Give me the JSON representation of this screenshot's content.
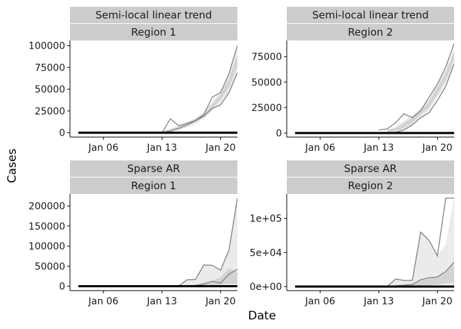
{
  "figure": {
    "xlabel": "Date",
    "ylabel": "Cases",
    "colors": {
      "strip_fill": "#cccccc",
      "band_outer": "#ebebeb",
      "band_inner": "#d3d3d3",
      "draw_line": "#7f7f7f",
      "observed_line": "#000000",
      "axis_line": "#000000"
    }
  },
  "chart_data": [
    {
      "type": "line",
      "facets": [
        "Semi-local linear trend",
        "Region 1"
      ],
      "x_ticks": [
        "Jan 06",
        "Jan 13",
        "Jan 20"
      ],
      "xlim": [
        1,
        21
      ],
      "ylim": [
        -5000,
        106000
      ],
      "y_ticks": [
        0,
        25000,
        50000,
        75000,
        100000
      ],
      "y_tick_labels": [
        "0",
        "25000",
        "50000",
        "75000",
        "100000"
      ],
      "x": [
        12,
        13,
        14,
        15,
        16,
        17,
        18,
        19,
        20,
        21
      ],
      "band_outer": {
        "lower": [
          0,
          1000,
          3000,
          6000,
          10000,
          16000,
          25000,
          33000,
          45000,
          68000
        ],
        "upper": [
          2000,
          5000,
          8000,
          12000,
          17000,
          24000,
          36000,
          48000,
          68000,
          98000
        ]
      },
      "band_inner": {
        "lower": [
          0,
          1500,
          4000,
          8000,
          12000,
          18000,
          28000,
          38000,
          52000,
          76000
        ],
        "upper": [
          1000,
          4000,
          7000,
          11000,
          16000,
          22000,
          33000,
          44000,
          62000,
          90000
        ]
      },
      "draws": [
        [
          0,
          16000,
          8000,
          11000,
          14000,
          21000,
          41000,
          46000,
          68000,
          100000
        ],
        [
          0,
          2000,
          5000,
          9000,
          14000,
          19000,
          28000,
          32000,
          46000,
          69000
        ]
      ],
      "observed": {
        "x": [
          2,
          21
        ],
        "y": [
          0,
          0
        ]
      }
    },
    {
      "type": "line",
      "facets": [
        "Semi-local linear trend",
        "Region 2"
      ],
      "x_ticks": [
        "Jan 06",
        "Jan 13",
        "Jan 20"
      ],
      "xlim": [
        1,
        21
      ],
      "ylim": [
        -4000,
        91000
      ],
      "y_ticks": [
        0,
        25000,
        50000,
        75000
      ],
      "y_tick_labels": [
        "0",
        "25000",
        "50000",
        "75000"
      ],
      "x": [
        13,
        14,
        15,
        16,
        17,
        18,
        19,
        20,
        21
      ],
      "band_outer": {
        "lower": [
          0,
          500,
          3000,
          8000,
          15000,
          22000,
          35000,
          48000,
          68000
        ],
        "upper": [
          3000,
          6000,
          12000,
          17000,
          24000,
          33000,
          48000,
          63000,
          84000
        ]
      },
      "band_inner": {
        "lower": [
          500,
          1500,
          5000,
          10000,
          18000,
          25000,
          38000,
          52000,
          72000
        ],
        "upper": [
          2500,
          5000,
          10000,
          15000,
          22000,
          31000,
          45000,
          60000,
          80000
        ]
      },
      "draws": [
        [
          3000,
          4000,
          10000,
          19000,
          15000,
          22000,
          35000,
          48000,
          65000,
          88000
        ],
        [
          0,
          500,
          3000,
          8000,
          15000,
          20000,
          32000,
          46000,
          68000
        ]
      ],
      "draw_x": [
        [
          12,
          13,
          14,
          15,
          16,
          17,
          18,
          19,
          20,
          21
        ],
        [
          13,
          14,
          15,
          16,
          17,
          18,
          19,
          20,
          21
        ]
      ],
      "observed": {
        "x": [
          2,
          21
        ],
        "y": [
          0,
          0
        ]
      }
    },
    {
      "type": "line",
      "facets": [
        "Sparse AR",
        "Region 1"
      ],
      "x_ticks": [
        "Jan 06",
        "Jan 13",
        "Jan 20"
      ],
      "xlim": [
        1,
        21
      ],
      "ylim": [
        -11000,
        230000
      ],
      "y_ticks": [
        0,
        50000,
        100000,
        150000,
        200000
      ],
      "y_tick_labels": [
        "0",
        "50000",
        "100000",
        "150000",
        "200000"
      ],
      "x": [
        13,
        14,
        15,
        16,
        17,
        18,
        19,
        20,
        21
      ],
      "band_outer": {
        "lower": [
          0,
          0,
          0,
          0,
          0,
          0,
          0,
          0,
          0
        ],
        "upper": [
          1500,
          3000,
          16000,
          17000,
          53000,
          52000,
          40000,
          90000,
          220000
        ]
      },
      "band_inner": {
        "lower": [
          0,
          0,
          0,
          0,
          1000,
          2000,
          3000,
          6000,
          5000
        ],
        "upper": [
          500,
          1000,
          3000,
          4000,
          10000,
          14000,
          22000,
          45000,
          35000
        ]
      },
      "draws": [
        [
          0,
          1000,
          16000,
          17000,
          53000,
          52000,
          40000,
          90000,
          220000
        ],
        [
          0,
          0,
          1000,
          2000,
          5000,
          12000,
          8000,
          30000,
          42000
        ]
      ],
      "observed": {
        "x": [
          2,
          21
        ],
        "y": [
          0,
          0
        ]
      }
    },
    {
      "type": "line",
      "facets": [
        "Sparse AR",
        "Region 2"
      ],
      "x_ticks": [
        "Jan 06",
        "Jan 13",
        "Jan 20"
      ],
      "xlim": [
        1,
        21
      ],
      "ylim": [
        -6000,
        136000
      ],
      "y_ticks": [
        0,
        50000,
        100000
      ],
      "y_tick_labels": [
        "0e+00",
        "5e+04",
        "1e+05"
      ],
      "x": [
        13,
        14,
        15,
        16,
        17,
        18,
        19,
        20,
        21
      ],
      "band_outer": {
        "lower": [
          0,
          0,
          0,
          0,
          0,
          0,
          0,
          0,
          0
        ],
        "upper": [
          1000,
          11000,
          9000,
          9000,
          80000,
          68000,
          45000,
          62000,
          130000
        ]
      },
      "band_inner": {
        "lower": [
          0,
          0,
          0,
          0,
          1000,
          2000,
          3000,
          5000,
          6000
        ],
        "upper": [
          500,
          2000,
          3000,
          4000,
          9000,
          12000,
          14000,
          20000,
          36000
        ]
      },
      "draws": [
        [
          0,
          11000,
          9000,
          9000,
          80000,
          68000,
          45000,
          130000,
          130000
        ],
        [
          0,
          1000,
          2000,
          3000,
          10000,
          13000,
          14000,
          22000,
          36000
        ]
      ],
      "observed": {
        "x": [
          2,
          21
        ],
        "y": [
          0,
          0
        ]
      }
    }
  ]
}
